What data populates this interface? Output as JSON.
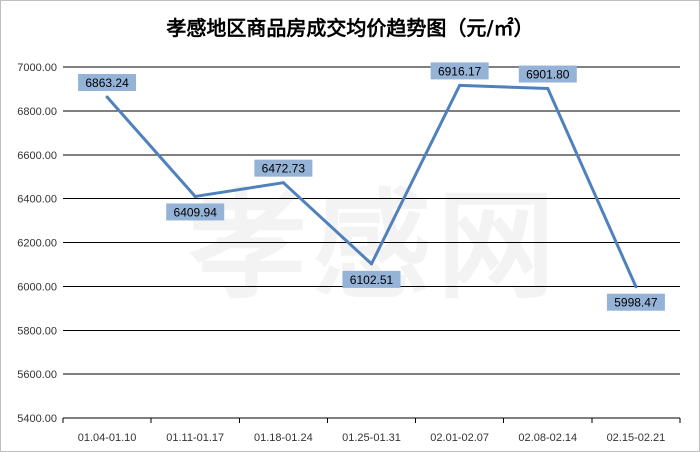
{
  "chart_data": {
    "type": "line",
    "title": "孝感地区商品房成交均价趋势图（元/㎡）",
    "watermark": "孝感网",
    "categories": [
      "01.04-01.10",
      "01.11-01.17",
      "01.18-01.24",
      "01.25-01.31",
      "02.01-02.07",
      "02.08-02.14",
      "02.15-02.21"
    ],
    "series": [
      {
        "values": [
          6863.24,
          6409.94,
          6472.73,
          6102.51,
          6916.17,
          6901.8,
          5998.47
        ],
        "labels": [
          "6863.24",
          "6409.94",
          "6472.73",
          "6102.51",
          "6916.17",
          "6901.80",
          "5998.47"
        ],
        "label_side": [
          "above",
          "below",
          "above",
          "below",
          "above",
          "above",
          "below"
        ]
      }
    ],
    "yticks": [
      "5400.00",
      "5600.00",
      "5800.00",
      "6000.00",
      "6200.00",
      "6400.00",
      "6600.00",
      "6800.00",
      "7000.00"
    ],
    "ylim": [
      5400,
      7000
    ],
    "grid": true,
    "legend": "none",
    "colors": {
      "line": "#4f81bd",
      "label_box": "#95b3d7",
      "grid": "#000000"
    }
  }
}
